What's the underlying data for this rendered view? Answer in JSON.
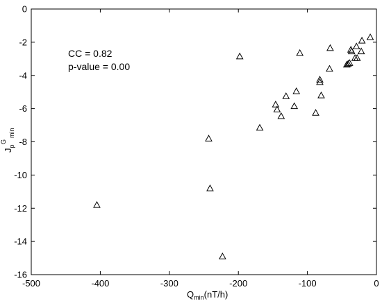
{
  "chart_data": {
    "type": "scatter",
    "marker": "open-triangle",
    "marker_color": "#000000",
    "xlabel": {
      "main": "Q",
      "sub": "min",
      "rest": "(nT/h)"
    },
    "ylabel": {
      "main": "J",
      "sub": "p",
      "sup": "G",
      "sub2": "min"
    },
    "xlim": [
      -500,
      0
    ],
    "ylim": [
      -16,
      0
    ],
    "xticks": [
      -500,
      -400,
      -300,
      -200,
      -100,
      0
    ],
    "yticks": [
      0,
      -2,
      -4,
      -6,
      -8,
      -10,
      -12,
      -14,
      -16
    ],
    "xtick_labels": [
      "-500",
      "-400",
      "-300",
      "-200",
      "-100",
      "0"
    ],
    "ytick_labels": [
      "0",
      "-2",
      "-4",
      "-6",
      "-8",
      "-10",
      "-12",
      "-14",
      "-16"
    ],
    "grid": false,
    "annotations": [
      "CC = 0.82",
      "p-value = 0.00"
    ],
    "points": [
      {
        "x": -405,
        "y": -11.8
      },
      {
        "x": -243,
        "y": -7.8
      },
      {
        "x": -241,
        "y": -10.8
      },
      {
        "x": -223,
        "y": -14.9
      },
      {
        "x": -198,
        "y": -2.85
      },
      {
        "x": -169,
        "y": -7.15
      },
      {
        "x": -146,
        "y": -5.75
      },
      {
        "x": -144,
        "y": -6.05
      },
      {
        "x": -138,
        "y": -6.45
      },
      {
        "x": -131,
        "y": -5.25
      },
      {
        "x": -119,
        "y": -5.85
      },
      {
        "x": -116,
        "y": -4.95
      },
      {
        "x": -111,
        "y": -2.65
      },
      {
        "x": -88,
        "y": -6.25
      },
      {
        "x": -82,
        "y": -4.25
      },
      {
        "x": -82,
        "y": -4.4
      },
      {
        "x": -80,
        "y": -5.2
      },
      {
        "x": -68,
        "y": -3.6
      },
      {
        "x": -67,
        "y": -2.35
      },
      {
        "x": -43,
        "y": -3.35
      },
      {
        "x": -41,
        "y": -3.3
      },
      {
        "x": -39,
        "y": -3.25
      },
      {
        "x": -37,
        "y": -2.45
      },
      {
        "x": -36,
        "y": -2.55
      },
      {
        "x": -31,
        "y": -2.95
      },
      {
        "x": -29,
        "y": -2.25
      },
      {
        "x": -28,
        "y": -2.95
      },
      {
        "x": -22,
        "y": -2.55
      },
      {
        "x": -21,
        "y": -1.9
      },
      {
        "x": -9,
        "y": -1.7
      }
    ]
  }
}
